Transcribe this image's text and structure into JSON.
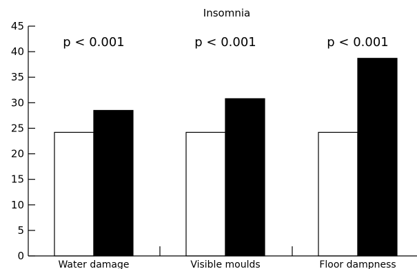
{
  "chart_data": {
    "type": "bar",
    "title": "Insomnia",
    "xlabel": "",
    "ylabel": "",
    "categories": [
      "Water damage",
      "Visible moulds",
      "Floor dampness"
    ],
    "series": [
      {
        "values": [
          24.2,
          24.2,
          24.2
        ],
        "color": "#ffffff"
      },
      {
        "values": [
          28.5,
          30.8,
          38.7
        ],
        "color": "#000000"
      }
    ],
    "ylim": [
      0,
      45
    ],
    "yticks": [
      0,
      5,
      10,
      15,
      20,
      25,
      30,
      35,
      40,
      45
    ],
    "annotations": [
      "p < 0.001",
      "p < 0.001",
      "p < 0.001"
    ],
    "grid": false,
    "legend": "none"
  }
}
